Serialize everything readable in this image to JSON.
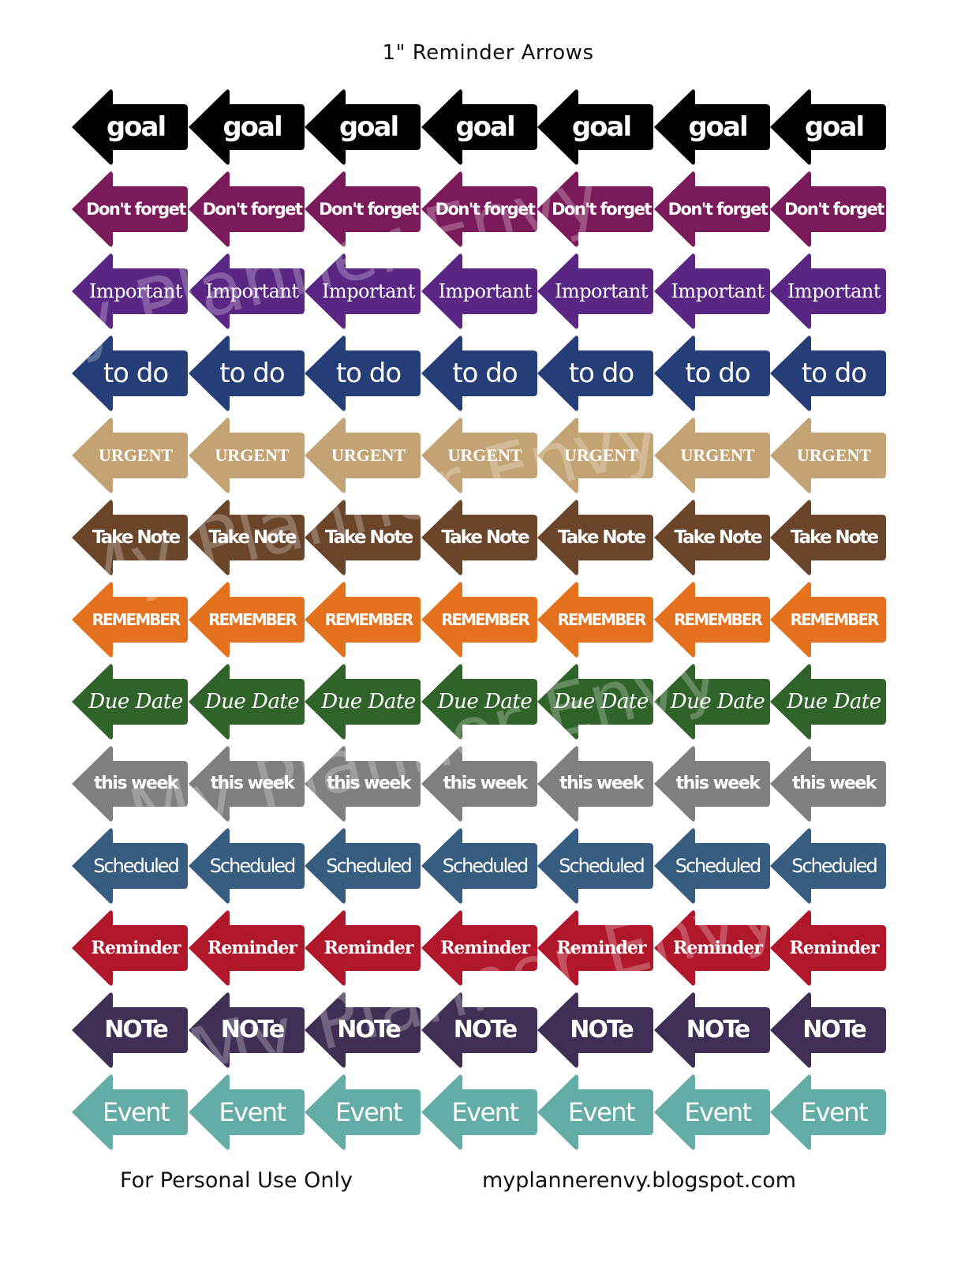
{
  "sheet": {
    "title": "1\" Reminder Arrows",
    "footer_left": "For Personal Use Only",
    "footer_right": "myplannerenvy.blogspot.com",
    "watermark": "My Planner Envy",
    "columns_per_row": 7
  },
  "rows": [
    {
      "label": "goal",
      "color": "#000000",
      "style": "goal"
    },
    {
      "label": "Don't forget",
      "color": "#7b1a5a",
      "style": "dont"
    },
    {
      "label": "Important",
      "color": "#5a2684",
      "style": "important"
    },
    {
      "label": "to do",
      "color": "#263e78",
      "style": "todo"
    },
    {
      "label": "URGENT",
      "color": "#c3a374",
      "style": "urgent"
    },
    {
      "label": "Take Note",
      "color": "#6b452a",
      "style": "takenote"
    },
    {
      "label": "REMEMBER",
      "color": "#e3711d",
      "style": "remember"
    },
    {
      "label": "Due Date",
      "color": "#2f6329",
      "style": "duedate"
    },
    {
      "label": "this week",
      "color": "#7f7f7f",
      "style": "thisweek"
    },
    {
      "label": "Scheduled",
      "color": "#365d80",
      "style": "scheduled"
    },
    {
      "label": "Reminder",
      "color": "#b0172a",
      "style": "reminder"
    },
    {
      "label": "NOTe",
      "color": "#3f2f55",
      "style": "note"
    },
    {
      "label": "Event",
      "color": "#64ada6",
      "style": "event"
    }
  ]
}
